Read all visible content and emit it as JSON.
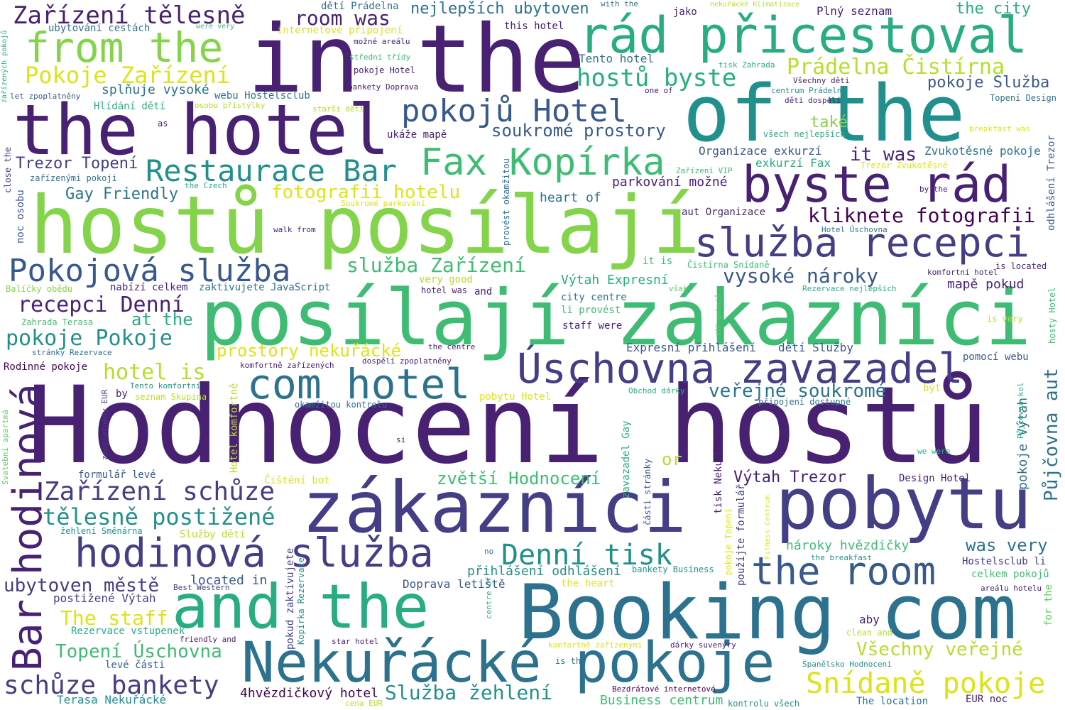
{
  "palette": {
    "purple": "#482173",
    "indigo": "#433e85",
    "blue": "#38598c",
    "steel": "#2c728e",
    "teal": "#21908d",
    "green": "#27ad81",
    "mint": "#3fbc73",
    "lime": "#5ec962",
    "leaf": "#84d44b",
    "yellowgreen": "#b5de2b",
    "yellow": "#dde318",
    "dark": "#440154"
  },
  "words": [
    "Hodnocení hostů",
    "in the",
    "hostů posílají",
    "posílají zákazníci",
    "zákazníci",
    "pobytu",
    "Booking com",
    "of the",
    "the hotel",
    "and the",
    "Nekuřácké pokoje",
    "rád přicestoval",
    "byste rád",
    "Úschovna zavazadel",
    "com hotel",
    "hodinová služba",
    "Bar hodinová",
    "the room",
    "služba recepci",
    "Pokojová služba",
    "from the",
    "Fax Kopírka",
    "pokojů Hotel",
    "Restaurace Bar",
    "Zařízení tělesně",
    "schůze bankety",
    "Denní tisk",
    "Zařízení schůze",
    "Snídaně pokoje",
    "tělesně postižené",
    "hostů byste",
    "Prádelna Čistírna",
    "Pokoje Zařízení",
    "recepci Denní",
    "pokoje Pokoje",
    "kliknete fotografii",
    "Služba žehlení",
    "vysoké nároky",
    "služba Zařízení",
    "room was",
    "soukromé prostory",
    "veřejné soukromé",
    "Topení Úschovna",
    "Všechny veřejné",
    "fotografii hotelu",
    "zvětší Hodnocení",
    "hotel is",
    "prostory nekuřácké",
    "The staff",
    "ubytoven městě",
    "Výtah Trezor",
    "was very",
    "Gay Friendly",
    "Trezor Topení",
    "nejlepších ubytoven",
    "pokoje Služba",
    "Půjčovna aut",
    "the city",
    "at the",
    "it was",
    "také",
    "splňuje vysoké",
    "Výtah Expresní",
    "Plný seznam",
    "Tento hotel",
    "Expresní přihlášení",
    "dětí Služby",
    "přihlášení odhlášení",
    "parkování možné",
    "mapě pokud",
    "4hvězdičkový hotel",
    "Business centrum",
    "nároky hvězdičky",
    "Doprava letiště",
    "located in",
    "Organizace exkurzí",
    "exkurzí Fax",
    "Zvukotěsné pokoje",
    "heart of",
    "aut Organizace",
    "postižené Výtah",
    "Terasa Nekuřácké",
    "Hlídání dětí",
    "webu Hostelsclub",
    "ubytování cestách",
    "internetové připojení",
    "Rodinné pokoje",
    "pomocí webu",
    "nabízí celkem",
    "zaktivujete JavaScript",
    "pokoje Výtah",
    "Čištění bot",
    "ukáže mapě",
    "pobytu Hotel",
    "celkem pokojů",
    "Hostelsclub li",
    "staff were",
    "city centre",
    "li provést",
    "Rezervace vstupenek",
    "Design Hotel",
    "The location",
    "Topení Design",
    "this hotel",
    "dětí Prádelna",
    "Zahrada Terasa",
    "seznam Skupina",
    "okamžitou kontrolu",
    "Služby dětí",
    "žehlení Směnárna",
    "Best Western",
    "the heart",
    "formulář levé",
    "levé části",
    "zařízenými pokoji",
    "pokoje Hotel",
    "bankety Doprava",
    "střední třídy",
    "možné areálu",
    "osobu přistýlky",
    "starší dětí",
    "Všechny děti",
    "centrum Prádelna",
    "děti dospělí",
    "všech nejlepších",
    "breakfast was",
    "Trezor Zvukotěsné",
    "Zařízení VIP",
    "the Czech",
    "Soukromé parkování",
    "walk from",
    "Hotel Úschovna",
    "komfortní hotel",
    "Rezervace nejlepších",
    "is located",
    "hotel was",
    "very good",
    "Čistírna Snídaně",
    "it is",
    "Balíčky obědu",
    "stránky Rezervace",
    "komfortně zařízených",
    "dospělí zpoplatněny",
    "the centre",
    "Tento komfortní",
    "Obchod dárky",
    "připojení dostupné",
    "být",
    "is very",
    "Půjčovna kol",
    "we were",
    "the breakfast",
    "areálu hotelu",
    "friendly and",
    "Španělsko Hodnocení",
    "dárky suvenýry",
    "komfortně zařízenými",
    "star hotel",
    "Bezdrátové internetové",
    "cena EUR",
    "kontrolu všech",
    "EUR noc",
    "clean and",
    "aby",
    "or",
    "is the",
    "bankety Business",
    "nekuřácké Klimatizace",
    "tisk Zahrada",
    "with the",
    "jako",
    "one of",
    "by the",
    "as",
    "by",
    "si",
    "no",
    "and",
    "však",
    "close the",
    "noc osobu",
    "zařízených pokojů",
    "let zpoplatněny",
    "Svatební apartmá",
    "zpoplatněny EUR",
    "provést okamžitou",
    "Hotel komfortně",
    "zavazadel Gay",
    "části stránky",
    "tisk Nekuřácké",
    "použijte formulář",
    "pokoje Topení",
    "pokud zaktivujete",
    "Kopírka Rezervace",
    "centre of",
    "VIP pokojů",
    "Fitness Centrum",
    "odhlášení Trezor",
    "hosty Hotel",
    "for the",
    "were very"
  ]
}
